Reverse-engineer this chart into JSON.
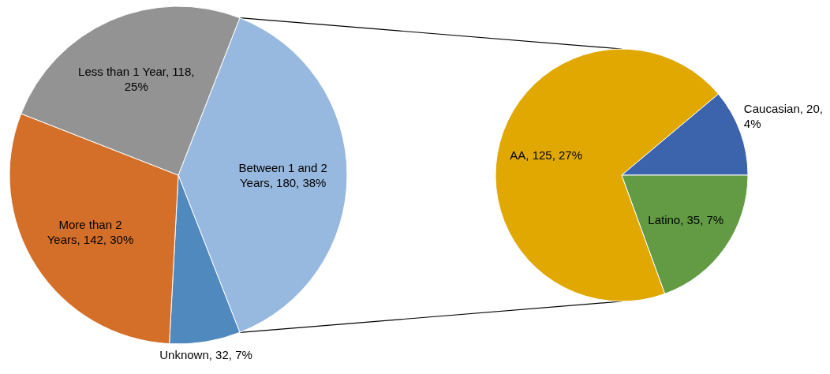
{
  "chart_data": [
    {
      "type": "pie",
      "categories": [
        "Between 1 and 2 Years",
        "Unknown",
        "More than 2 Years",
        "Less than 1 Year"
      ],
      "values": [
        180,
        32,
        142,
        118
      ],
      "colors": [
        "#98b9df",
        "#4f89bd",
        "#d46f2a",
        "#939393"
      ],
      "value_labels": [
        "180, 38%",
        "32, 7%",
        "142, 30%",
        "118, 25%"
      ]
    },
    {
      "type": "pie",
      "categories": [
        "AA",
        "Caucasian",
        "Latino"
      ],
      "values": [
        125,
        20,
        35
      ],
      "colors": [
        "#e0a800",
        "#3c64ad",
        "#629b43"
      ],
      "value_labels": [
        "125, 27%",
        "20, 4%",
        "35, 7%"
      ]
    }
  ]
}
